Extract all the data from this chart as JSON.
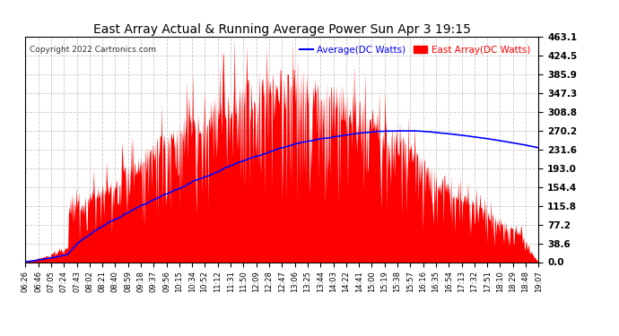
{
  "title": "East Array Actual & Running Average Power Sun Apr 3 19:15",
  "copyright": "Copyright 2022 Cartronics.com",
  "legend_avg": "Average(DC Watts)",
  "legend_east": "East Array(DC Watts)",
  "ylabel_values": [
    0.0,
    38.6,
    77.2,
    115.8,
    154.4,
    193.0,
    231.6,
    270.2,
    308.8,
    347.3,
    385.9,
    424.5,
    463.1
  ],
  "ymax": 463.1,
  "ymin": 0.0,
  "background_color": "#ffffff",
  "plot_bg_color": "#ffffff",
  "grid_color": "#bbbbbb",
  "east_array_color": "#ff0000",
  "average_color": "#0000ff",
  "title_color": "#000000",
  "avg_legend_color": "#0000ff",
  "east_legend_color": "#ff0000",
  "xtick_labels": [
    "06:26",
    "06:46",
    "07:05",
    "07:24",
    "07:43",
    "08:02",
    "08:21",
    "08:40",
    "08:59",
    "09:18",
    "09:37",
    "09:56",
    "10:15",
    "10:34",
    "10:52",
    "11:12",
    "11:31",
    "11:50",
    "12:09",
    "12:28",
    "12:47",
    "13:06",
    "13:25",
    "13:44",
    "14:03",
    "14:22",
    "14:41",
    "15:00",
    "15:19",
    "15:38",
    "15:57",
    "16:16",
    "16:35",
    "16:54",
    "17:13",
    "17:32",
    "17:51",
    "18:10",
    "18:29",
    "18:48",
    "19:07"
  ]
}
